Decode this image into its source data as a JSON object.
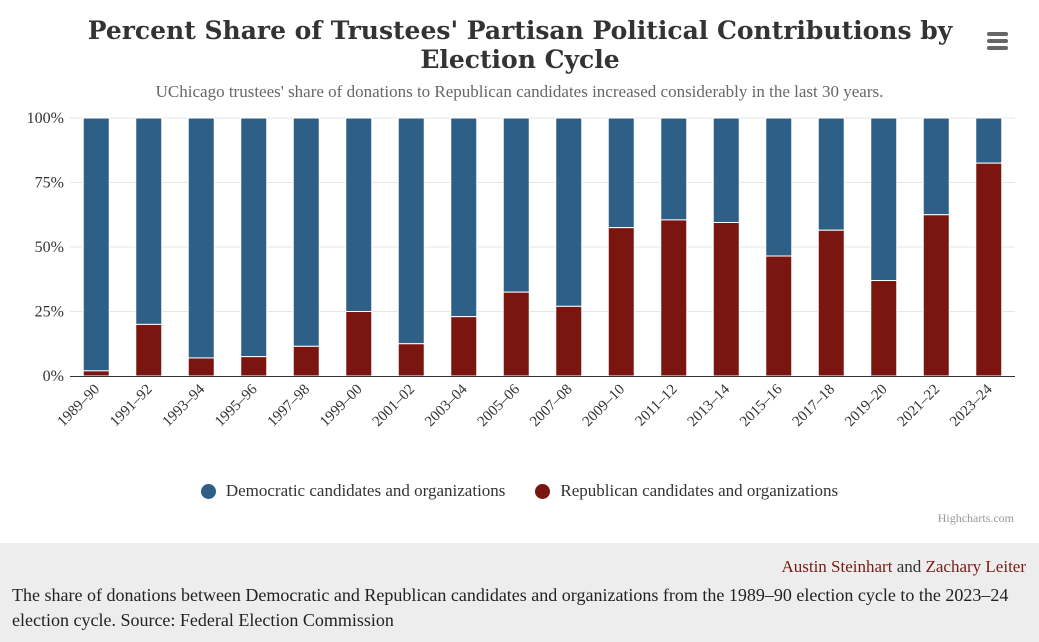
{
  "chart_data": {
    "type": "bar",
    "stacked": "percent",
    "title": "Percent Share of Trustees' Partisan Political Contributions by Election Cycle",
    "subtitle": "UChicago trustees' share of donations to Republican candidates increased considerably in the last 30 years.",
    "categories": [
      "1989–90",
      "1991–92",
      "1993–94",
      "1995–96",
      "1997–98",
      "1999–00",
      "2001–02",
      "2003–04",
      "2005–06",
      "2007–08",
      "2009–10",
      "2011–12",
      "2013–14",
      "2015–16",
      "2017–18",
      "2019–20",
      "2021–22",
      "2023–24"
    ],
    "series": [
      {
        "name": "Democratic candidates and organizations",
        "color": "#2d5f87",
        "values": [
          98,
          80,
          93,
          92.5,
          88.5,
          75,
          87.5,
          77,
          67.5,
          73,
          42.5,
          39.5,
          40.5,
          53.5,
          43.5,
          63,
          37.5,
          17.5
        ]
      },
      {
        "name": "Republican candidates and organizations",
        "color": "#7a1510",
        "values": [
          2,
          20,
          7,
          7.5,
          11.5,
          25,
          12.5,
          23,
          32.5,
          27,
          57.5,
          60.5,
          59.5,
          46.5,
          56.5,
          37,
          62.5,
          82.5
        ]
      }
    ],
    "ylim": [
      0,
      100
    ],
    "yticks": [
      "0%",
      "25%",
      "50%",
      "75%",
      "100%"
    ],
    "ytick_values": [
      0,
      25,
      50,
      75,
      100
    ],
    "xlabel": "",
    "ylabel": "",
    "grid": true,
    "legend_position": "bottom"
  },
  "credits": "Highcharts.com",
  "authors": {
    "first": "Austin Steinhart",
    "connector": "and",
    "second": "Zachary Leiter"
  },
  "caption": "The share of donations between Democratic and Republican candidates and organizations from the 1989–90 election cycle to the 2023–24 election cycle. Source: Federal Election Commission",
  "icons": {
    "menu": "hamburger-menu-icon"
  }
}
